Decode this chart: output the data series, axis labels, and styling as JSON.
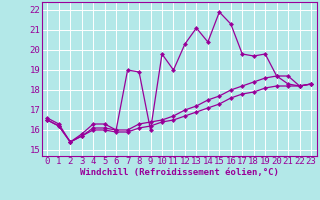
{
  "x": [
    0,
    1,
    2,
    3,
    4,
    5,
    6,
    7,
    8,
    9,
    10,
    11,
    12,
    13,
    14,
    15,
    16,
    17,
    18,
    19,
    20,
    21,
    22,
    23
  ],
  "line1": [
    16.6,
    16.3,
    15.4,
    15.8,
    16.3,
    16.3,
    16.0,
    19.0,
    18.9,
    16.0,
    19.8,
    19.0,
    20.3,
    21.1,
    20.4,
    21.9,
    21.3,
    19.8,
    19.7,
    19.8,
    18.7,
    18.3,
    18.2,
    18.3
  ],
  "line2": [
    16.5,
    16.2,
    15.4,
    15.7,
    16.1,
    16.1,
    16.0,
    16.0,
    16.3,
    16.4,
    16.5,
    16.7,
    17.0,
    17.2,
    17.5,
    17.7,
    18.0,
    18.2,
    18.4,
    18.6,
    18.7,
    18.7,
    18.2,
    18.3
  ],
  "line3": [
    16.5,
    16.2,
    15.4,
    15.7,
    16.0,
    16.0,
    15.9,
    15.9,
    16.1,
    16.2,
    16.4,
    16.5,
    16.7,
    16.9,
    17.1,
    17.3,
    17.6,
    17.8,
    17.9,
    18.1,
    18.2,
    18.2,
    18.2,
    18.3
  ],
  "color": "#990099",
  "bg_color": "#b3e8e8",
  "grid_color": "#ffffff",
  "yticks": [
    15,
    16,
    17,
    18,
    19,
    20,
    21,
    22
  ],
  "xticks": [
    0,
    1,
    2,
    3,
    4,
    5,
    6,
    7,
    8,
    9,
    10,
    11,
    12,
    13,
    14,
    15,
    16,
    17,
    18,
    19,
    20,
    21,
    22,
    23
  ],
  "ylim": [
    14.7,
    22.4
  ],
  "xlim": [
    -0.5,
    23.5
  ],
  "xlabel": "Windchill (Refroidissement éolien,°C)",
  "marker": "D",
  "markersize": 2.5,
  "linewidth": 0.9,
  "tick_fontsize": 6.5,
  "label_fontsize": 6.5
}
